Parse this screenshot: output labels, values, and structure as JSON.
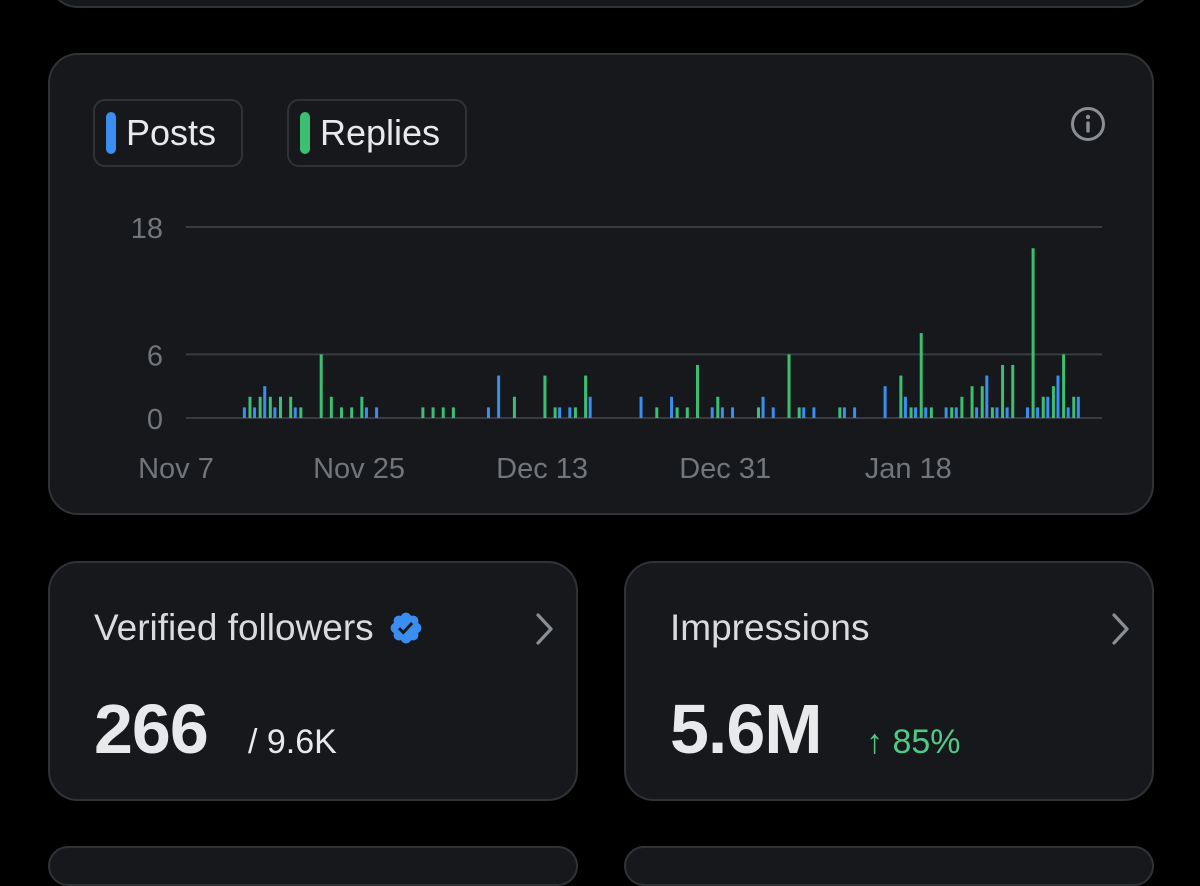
{
  "colors": {
    "posts": "#3a8ef0",
    "replies": "#3bbf73",
    "verified_badge": "#3a8ef0",
    "positive_change": "#4fc985"
  },
  "chart": {
    "legend": [
      {
        "label": "Posts",
        "color": "#3a8ef0"
      },
      {
        "label": "Replies",
        "color": "#3bbf73"
      }
    ],
    "info_icon": "info-icon"
  },
  "chart_data": {
    "type": "bar",
    "title": "",
    "xlabel": "",
    "ylabel": "",
    "ylim": [
      0,
      18
    ],
    "yticks": [
      "18",
      "6",
      "0"
    ],
    "ytick_values": [
      18,
      6,
      0
    ],
    "xtick_labels": [
      "Nov 7",
      "Nov 25",
      "Dec 13",
      "Dec 31",
      "Jan 18"
    ],
    "xtick_days": [
      0,
      18,
      36,
      54,
      72
    ],
    "series": [
      {
        "name": "Posts",
        "days": [
          7,
          8,
          9,
          10,
          12,
          19,
          20,
          31,
          32,
          38,
          39,
          41,
          46,
          49,
          53,
          54,
          55,
          58,
          59,
          62,
          63,
          66,
          67,
          70,
          72,
          73,
          74,
          76,
          77,
          79,
          80,
          81,
          82,
          84,
          85,
          86,
          87,
          88,
          89
        ],
        "values": [
          1,
          1,
          3,
          1,
          1,
          1,
          1,
          1,
          4,
          1,
          1,
          2,
          2,
          2,
          1,
          1,
          1,
          2,
          1,
          1,
          1,
          1,
          1,
          3,
          2,
          1,
          1,
          1,
          1,
          1,
          4,
          1,
          1,
          1,
          1,
          2,
          4,
          1,
          2
        ]
      },
      {
        "name": "Replies",
        "days": [
          7,
          8,
          9,
          10,
          11,
          12,
          14,
          15,
          16,
          17,
          18,
          24,
          25,
          26,
          27,
          33,
          36,
          37,
          39,
          40,
          47,
          49,
          50,
          51,
          53,
          57,
          60,
          61,
          65,
          71,
          72,
          73,
          74,
          76,
          77,
          78,
          79,
          80,
          81,
          82,
          84,
          85,
          86,
          87,
          88
        ],
        "values": [
          2,
          2,
          2,
          2,
          2,
          1,
          6,
          2,
          1,
          1,
          2,
          1,
          1,
          1,
          1,
          2,
          4,
          1,
          1,
          4,
          1,
          1,
          1,
          5,
          2,
          1,
          6,
          1,
          1,
          4,
          1,
          8,
          1,
          1,
          2,
          3,
          3,
          1,
          5,
          5,
          16,
          2,
          3,
          6,
          2
        ]
      }
    ]
  },
  "stats": {
    "followers": {
      "title": "Verified followers",
      "badge_icon": "verified-badge-icon",
      "value": "266",
      "total": "/ 9.6K",
      "chevron_icon": "chevron-right-icon"
    },
    "impressions": {
      "title": "Impressions",
      "value": "5.6M",
      "change_arrow": "↑",
      "change": "85%",
      "chevron_icon": "chevron-right-icon"
    }
  }
}
